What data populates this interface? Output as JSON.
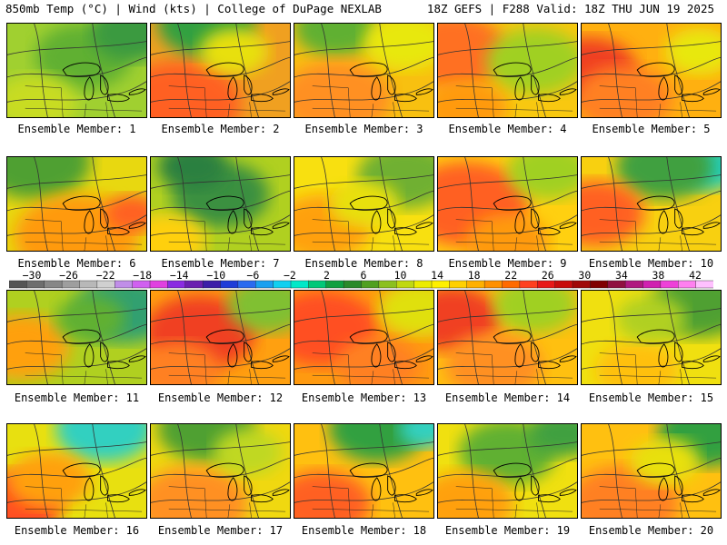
{
  "header": {
    "left": "850mb Temp (°C) | Wind (kts) | College of DuPage NEXLAB",
    "right": "18Z GEFS | F288 Valid: 18Z THU JUN 19 2025"
  },
  "colorbar": {
    "labels": [
      "−30",
      "−26",
      "−22",
      "−18",
      "−14",
      "−10",
      "−6",
      "−2",
      "2",
      "6",
      "10",
      "14",
      "18",
      "22",
      "26",
      "30",
      "34",
      "38",
      "42"
    ],
    "colors": [
      "#555555",
      "#6e6e6e",
      "#878787",
      "#9e9e9e",
      "#b8b8b8",
      "#d0d0d0",
      "#c08ee8",
      "#d060f0",
      "#e040e0",
      "#8a2be2",
      "#6a1fb0",
      "#3c1ea8",
      "#1e3cd8",
      "#2a6af0",
      "#1aa0f0",
      "#10d0f0",
      "#00e8c8",
      "#00c878",
      "#10a040",
      "#2a8a2a",
      "#50a020",
      "#8cc020",
      "#c0d810",
      "#ecec00",
      "#fff000",
      "#ffd000",
      "#ffb000",
      "#ff9000",
      "#ff6a00",
      "#ff4020",
      "#e81818",
      "#c80c0c",
      "#a00808",
      "#800000",
      "#901040",
      "#b01880",
      "#d020b0",
      "#ee40d8",
      "#ff80f0",
      "#ffc0ff"
    ]
  },
  "members": [
    {
      "label": "Ensemble Member: 1",
      "base": "#a0d030",
      "zones": [
        [
          "#60b030",
          0.55,
          0.35,
          0.35
        ],
        [
          "#3a9a40",
          0.9,
          0.1,
          0.3
        ],
        [
          "#c8dc20",
          0.2,
          0.85,
          0.3
        ]
      ]
    },
    {
      "label": "Ensemble Member: 2",
      "base": "#f0a020",
      "zones": [
        [
          "#ff6020",
          0.2,
          0.85,
          0.45
        ],
        [
          "#30a040",
          0.4,
          0.0,
          0.35
        ],
        [
          "#e8e010",
          0.6,
          0.3,
          0.25
        ]
      ]
    },
    {
      "label": "Ensemble Member: 3",
      "base": "#f8c010",
      "zones": [
        [
          "#60b030",
          0.3,
          0.05,
          0.3
        ],
        [
          "#ff9020",
          0.3,
          0.8,
          0.4
        ],
        [
          "#e8e810",
          0.8,
          0.2,
          0.3
        ]
      ]
    },
    {
      "label": "Ensemble Member: 4",
      "base": "#f8c810",
      "zones": [
        [
          "#ff7020",
          0.1,
          0.3,
          0.4
        ],
        [
          "#a0d020",
          0.7,
          0.4,
          0.35
        ],
        [
          "#ff9a10",
          0.2,
          0.9,
          0.3
        ]
      ]
    },
    {
      "label": "Ensemble Member: 5",
      "base": "#ffb010",
      "zones": [
        [
          "#f04020",
          0.05,
          0.5,
          0.35
        ],
        [
          "#ff8020",
          0.3,
          0.8,
          0.35
        ],
        [
          "#e8e810",
          0.85,
          0.3,
          0.25
        ]
      ]
    },
    {
      "label": "Ensemble Member: 6",
      "base": "#e8d810",
      "zones": [
        [
          "#50a030",
          0.2,
          0.05,
          0.4
        ],
        [
          "#ff9a10",
          0.5,
          0.85,
          0.45
        ],
        [
          "#ff6020",
          0.9,
          0.6,
          0.2
        ]
      ]
    },
    {
      "label": "Ensemble Member: 7",
      "base": "#b0d020",
      "zones": [
        [
          "#3a9040",
          0.5,
          0.4,
          0.35
        ],
        [
          "#ffd010",
          0.1,
          0.9,
          0.3
        ],
        [
          "#2a8040",
          0.3,
          0.1,
          0.25
        ]
      ]
    },
    {
      "label": "Ensemble Member: 8",
      "base": "#f8e010",
      "zones": [
        [
          "#70b030",
          0.8,
          0.2,
          0.35
        ],
        [
          "#ffa010",
          0.2,
          0.75,
          0.35
        ],
        [
          "#e8e010",
          0.5,
          0.5,
          0.25
        ]
      ]
    },
    {
      "label": "Ensemble Member: 9",
      "base": "#ffd010",
      "zones": [
        [
          "#ff6020",
          0.2,
          0.5,
          0.45
        ],
        [
          "#a0d020",
          0.8,
          0.15,
          0.3
        ],
        [
          "#ff9a10",
          0.5,
          0.9,
          0.3
        ]
      ]
    },
    {
      "label": "Ensemble Member: 10",
      "base": "#f8d010",
      "zones": [
        [
          "#20d0c0",
          0.9,
          0.1,
          0.25
        ],
        [
          "#40a040",
          0.6,
          0.1,
          0.35
        ],
        [
          "#ff6020",
          0.1,
          0.6,
          0.35
        ]
      ]
    },
    {
      "label": "Ensemble Member: 11",
      "base": "#b0d020",
      "zones": [
        [
          "#30a070",
          0.85,
          0.2,
          0.35
        ],
        [
          "#ffa010",
          0.1,
          0.6,
          0.35
        ],
        [
          "#60b030",
          0.6,
          0.3,
          0.25
        ]
      ]
    },
    {
      "label": "Ensemble Member: 12",
      "base": "#ffa010",
      "zones": [
        [
          "#f04020",
          0.35,
          0.45,
          0.4
        ],
        [
          "#80c030",
          0.85,
          0.15,
          0.3
        ],
        [
          "#ff8020",
          0.2,
          0.85,
          0.3
        ]
      ]
    },
    {
      "label": "Ensemble Member: 13",
      "base": "#ff9a10",
      "zones": [
        [
          "#ff5020",
          0.2,
          0.4,
          0.4
        ],
        [
          "#e0e010",
          0.9,
          0.2,
          0.3
        ],
        [
          "#ff8020",
          0.6,
          0.8,
          0.3
        ]
      ]
    },
    {
      "label": "Ensemble Member: 14",
      "base": "#ffc010",
      "zones": [
        [
          "#f04020",
          0.1,
          0.3,
          0.35
        ],
        [
          "#a0d020",
          0.7,
          0.15,
          0.3
        ],
        [
          "#ff9020",
          0.4,
          0.8,
          0.35
        ]
      ]
    },
    {
      "label": "Ensemble Member: 15",
      "base": "#f0e010",
      "zones": [
        [
          "#50a030",
          0.85,
          0.15,
          0.35
        ],
        [
          "#ffc010",
          0.4,
          0.85,
          0.3
        ],
        [
          "#b0d020",
          0.5,
          0.3,
          0.25
        ]
      ]
    },
    {
      "label": "Ensemble Member: 16",
      "base": "#e8e010",
      "zones": [
        [
          "#30d0c0",
          0.7,
          0.05,
          0.35
        ],
        [
          "#ff5020",
          0.05,
          0.85,
          0.35
        ],
        [
          "#ffa010",
          0.3,
          0.6,
          0.3
        ]
      ]
    },
    {
      "label": "Ensemble Member: 17",
      "base": "#f0d810",
      "zones": [
        [
          "#50a030",
          0.4,
          0.05,
          0.35
        ],
        [
          "#ff9020",
          0.3,
          0.85,
          0.4
        ],
        [
          "#c0d820",
          0.7,
          0.3,
          0.25
        ]
      ]
    },
    {
      "label": "Ensemble Member: 18",
      "base": "#ffc010",
      "zones": [
        [
          "#30a040",
          0.6,
          0.05,
          0.35
        ],
        [
          "#ff6020",
          0.2,
          0.85,
          0.35
        ],
        [
          "#30d0c0",
          0.95,
          0.05,
          0.2
        ]
      ]
    },
    {
      "label": "Ensemble Member: 19",
      "base": "#f0e010",
      "zones": [
        [
          "#60b030",
          0.5,
          0.3,
          0.35
        ],
        [
          "#ffa010",
          0.2,
          0.85,
          0.35
        ],
        [
          "#40a040",
          0.9,
          0.1,
          0.25
        ]
      ]
    },
    {
      "label": "Ensemble Member: 20",
      "base": "#ffc010",
      "zones": [
        [
          "#30a040",
          0.9,
          0.1,
          0.35
        ],
        [
          "#ff8020",
          0.3,
          0.85,
          0.4
        ],
        [
          "#e8e010",
          0.6,
          0.4,
          0.25
        ]
      ]
    }
  ]
}
